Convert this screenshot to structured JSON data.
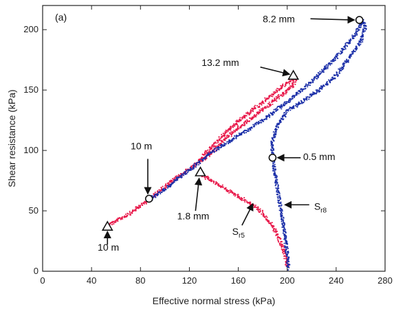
{
  "chart_data": {
    "type": "scatter",
    "panel_label": "(a)",
    "xlabel": "Effective normal stress (kPa)",
    "ylabel": "Shear resistance (kPa)",
    "xlim": [
      0,
      280
    ],
    "ylim": [
      0,
      220
    ],
    "xticks": [
      "0",
      "40",
      "80",
      "120",
      "160",
      "200",
      "240",
      "280"
    ],
    "yticks": [
      "0",
      "50",
      "100",
      "150",
      "200"
    ],
    "grid": false,
    "colors": {
      "red": "#e8194a",
      "blue": "#1b2fa8",
      "axis": "#222222"
    },
    "series": [
      {
        "color": "red",
        "paths": [
          [
            [
              53,
              38
            ],
            [
              70,
              47
            ],
            [
              88,
              60
            ],
            [
              100,
              70
            ],
            [
              112,
              79
            ],
            [
              125,
              88
            ],
            [
              135,
              100
            ],
            [
              150,
              115
            ],
            [
              165,
              128
            ],
            [
              180,
              140
            ],
            [
              195,
              152
            ],
            [
              203,
              158
            ],
            [
              207,
              160
            ]
          ],
          [
            [
              207,
              160
            ],
            [
              205,
              154
            ],
            [
              198,
              148
            ],
            [
              188,
              140
            ],
            [
              175,
              130
            ],
            [
              162,
              120
            ],
            [
              150,
              110
            ],
            [
              138,
              98
            ],
            [
              128,
              90
            ]
          ],
          [
            [
              130,
              80
            ],
            [
              140,
              74
            ],
            [
              150,
              68
            ],
            [
              160,
              62
            ],
            [
              170,
              56
            ],
            [
              178,
              50
            ],
            [
              184,
              43
            ],
            [
              189,
              36
            ],
            [
              193,
              28
            ],
            [
              196,
              20
            ],
            [
              199,
              10
            ],
            [
              200,
              3
            ]
          ]
        ]
      },
      {
        "color": "blue",
        "paths": [
          [
            [
              88,
              60
            ],
            [
              100,
              68
            ],
            [
              112,
              78
            ],
            [
              125,
              88
            ],
            [
              140,
              100
            ],
            [
              160,
              112
            ],
            [
              180,
              125
            ],
            [
              200,
              140
            ],
            [
              220,
              157
            ],
            [
              240,
              177
            ],
            [
              255,
              195
            ],
            [
              262,
              208
            ],
            [
              264,
              202
            ]
          ],
          [
            [
              264,
              202
            ],
            [
              260,
              190
            ],
            [
              252,
              178
            ],
            [
              240,
              162
            ],
            [
              226,
              150
            ],
            [
              212,
              140
            ],
            [
              200,
              133
            ],
            [
              192,
              120
            ],
            [
              188,
              108
            ],
            [
              188,
              95
            ],
            [
              190,
              80
            ],
            [
              193,
              62
            ],
            [
              196,
              45
            ],
            [
              198,
              30
            ],
            [
              200,
              15
            ],
            [
              201,
              2
            ]
          ]
        ]
      }
    ],
    "markers": [
      {
        "shape": "triangle",
        "x": 53,
        "y": 37
      },
      {
        "shape": "circle",
        "x": 87,
        "y": 60
      },
      {
        "shape": "triangle",
        "x": 129,
        "y": 82
      },
      {
        "shape": "triangle",
        "x": 205,
        "y": 162
      },
      {
        "shape": "circle",
        "x": 188,
        "y": 94
      },
      {
        "shape": "circle",
        "x": 259,
        "y": 208
      }
    ],
    "annotations": [
      {
        "text": "10 m",
        "text_x": 45,
        "text_y": 17,
        "arrow_from": [
          53,
          22
        ],
        "arrow_to": [
          53,
          33
        ]
      },
      {
        "text": "10 m",
        "text_x": 72,
        "text_y": 101,
        "arrow_from": [
          86,
          93
        ],
        "arrow_to": [
          86,
          64
        ]
      },
      {
        "text": "1.8 mm",
        "text_x": 110,
        "text_y": 43,
        "arrow_from": [
          125,
          50
        ],
        "arrow_to": [
          128,
          77
        ]
      },
      {
        "text": "13.2 mm",
        "text_x": 130,
        "text_y": 170,
        "arrow_from": [
          178,
          169
        ],
        "arrow_to": [
          202,
          163
        ]
      },
      {
        "text": "0.5 mm",
        "text_x": 213,
        "text_y": 92,
        "arrow_from": [
          211,
          94
        ],
        "arrow_to": [
          192,
          94
        ]
      },
      {
        "text": "8.2 mm",
        "text_x": 180,
        "text_y": 206,
        "arrow_from": [
          219,
          209
        ],
        "arrow_to": [
          255,
          208
        ]
      },
      {
        "text": "S",
        "sub": "r8",
        "text_x": 222,
        "text_y": 51,
        "arrow_from": [
          218,
          55
        ],
        "arrow_to": [
          198,
          55
        ]
      },
      {
        "text": "S",
        "sub": "r5",
        "text_x": 155,
        "text_y": 30,
        "arrow_from": [
          163,
          38
        ],
        "arrow_to": [
          172,
          56
        ]
      }
    ]
  }
}
